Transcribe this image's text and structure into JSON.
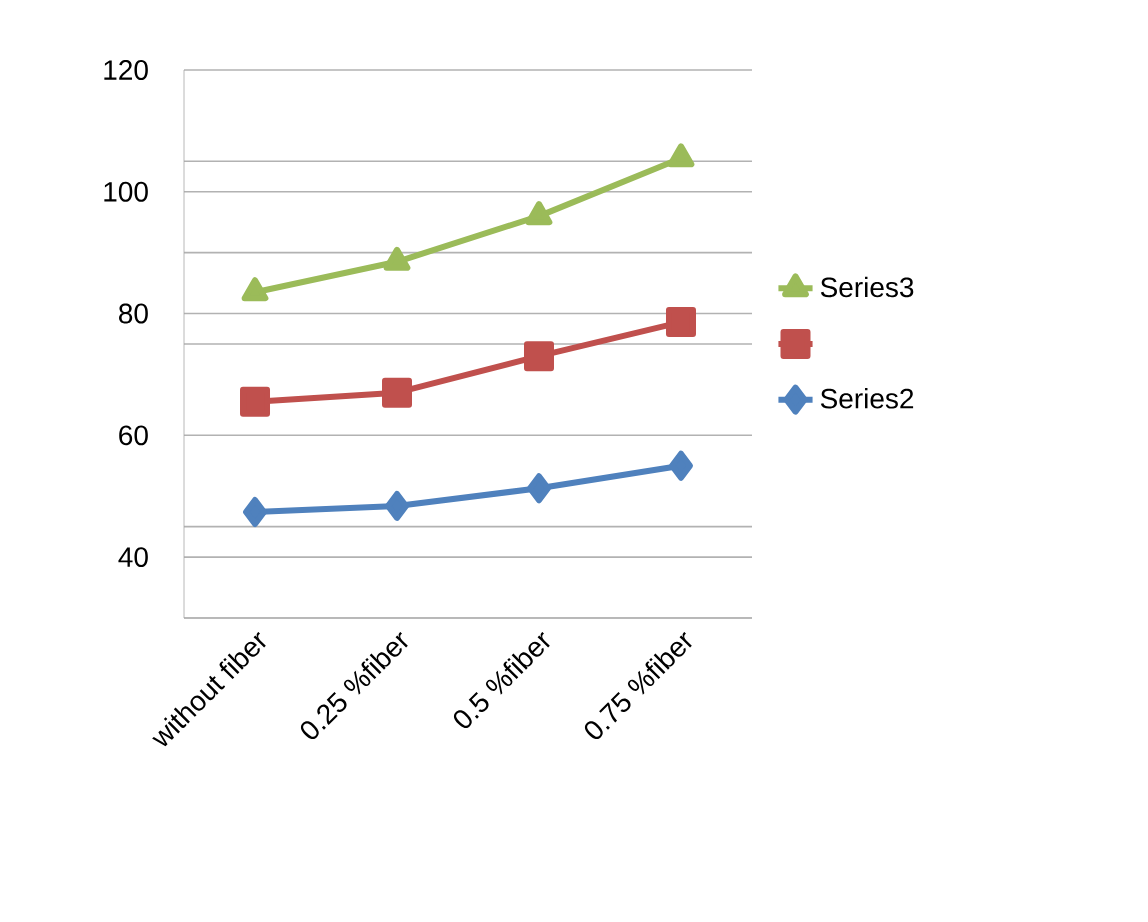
{
  "chart_data": {
    "type": "line",
    "categories": [
      "without fiber",
      "0.25 %fiber",
      "0.5 %fiber",
      "0.75 %fiber"
    ],
    "series": [
      {
        "name": "Series3",
        "color": "#9bbb59",
        "marker": "triangle",
        "values": [
          83.5,
          88.5,
          96,
          105.5
        ]
      },
      {
        "color": "#c0504d",
        "marker": "square",
        "values": [
          65.5,
          67,
          73,
          78.6
        ]
      },
      {
        "name": "Series2",
        "color": "#4f81bd",
        "marker": "diamond",
        "values": [
          47.4,
          48.4,
          51.3,
          55
        ]
      }
    ],
    "ylim": [
      30,
      120
    ],
    "yticks": [
      {
        "value": 30,
        "label": null
      },
      {
        "value": 40,
        "label": "40"
      },
      {
        "value": 45,
        "label": null
      },
      60,
      {
        "value": 75,
        "label": null
      },
      80,
      {
        "value": 90,
        "label": null
      },
      100,
      {
        "value": 105,
        "label": null
      },
      120
    ],
    "grid": "y",
    "legend": "right"
  }
}
